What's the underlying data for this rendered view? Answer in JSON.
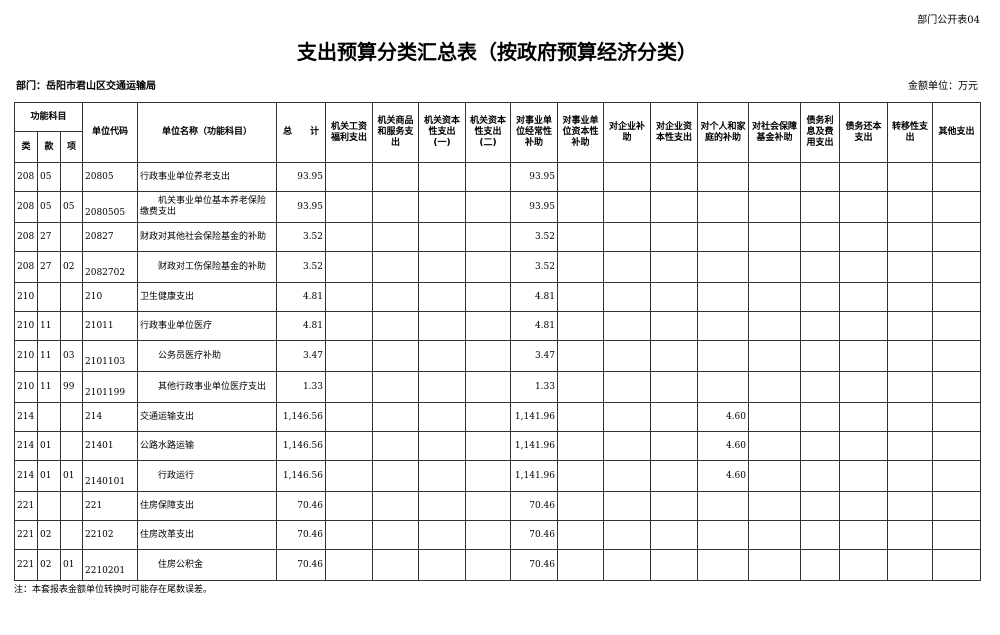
{
  "form_tag": "部门公开表04",
  "title": "支出预算分类汇总表（按政府预算经济分类）",
  "department": "部门：岳阳市君山区交通运输局",
  "unit": "金额单位：万元",
  "headers": {
    "func": "功能科目",
    "lei": "类",
    "kuan": "款",
    "xiang": "项",
    "code": "单位代码",
    "name": "单位名称（功能科目）",
    "total": "总　　计",
    "cols": [
      "机关工资福利支出",
      "机关商品和服务支出",
      "机关资本性支出(一)",
      "机关资本性支出(二)",
      "对事业单位经常性补助",
      "对事业单位资本性补助",
      "对企业补助",
      "对企业资本性支出",
      "对个人和家庭的补助",
      "对社会保障基金补助",
      "债务利息及费用支出",
      "债务还本支出",
      "转移性支出",
      "其他支出"
    ]
  },
  "rows": [
    {
      "lei": "208",
      "kuan": "05",
      "xiang": "",
      "code": "20805",
      "name": "行政事业单位养老支出",
      "total": "93.95",
      "v": [
        "",
        "",
        "",
        "",
        "93.95",
        "",
        "",
        "",
        "",
        "",
        "",
        "",
        "",
        ""
      ]
    },
    {
      "lei": "208",
      "kuan": "05",
      "xiang": "05",
      "code": "2080505",
      "name": "　　机关事业单位基本养老保险缴费支出",
      "total": "93.95",
      "v": [
        "",
        "",
        "",
        "",
        "93.95",
        "",
        "",
        "",
        "",
        "",
        "",
        "",
        "",
        ""
      ]
    },
    {
      "lei": "208",
      "kuan": "27",
      "xiang": "",
      "code": "20827",
      "name": "财政对其他社会保险基金的补助",
      "total": "3.52",
      "v": [
        "",
        "",
        "",
        "",
        "3.52",
        "",
        "",
        "",
        "",
        "",
        "",
        "",
        "",
        ""
      ]
    },
    {
      "lei": "208",
      "kuan": "27",
      "xiang": "02",
      "code": "2082702",
      "name": "　　财政对工伤保险基金的补助",
      "total": "3.52",
      "v": [
        "",
        "",
        "",
        "",
        "3.52",
        "",
        "",
        "",
        "",
        "",
        "",
        "",
        "",
        ""
      ]
    },
    {
      "lei": "210",
      "kuan": "",
      "xiang": "",
      "code": "210",
      "name": "卫生健康支出",
      "total": "4.81",
      "v": [
        "",
        "",
        "",
        "",
        "4.81",
        "",
        "",
        "",
        "",
        "",
        "",
        "",
        "",
        ""
      ]
    },
    {
      "lei": "210",
      "kuan": "11",
      "xiang": "",
      "code": "21011",
      "name": "行政事业单位医疗",
      "total": "4.81",
      "v": [
        "",
        "",
        "",
        "",
        "4.81",
        "",
        "",
        "",
        "",
        "",
        "",
        "",
        "",
        ""
      ]
    },
    {
      "lei": "210",
      "kuan": "11",
      "xiang": "03",
      "code": "2101103",
      "name": "　　公务员医疗补助",
      "total": "3.47",
      "v": [
        "",
        "",
        "",
        "",
        "3.47",
        "",
        "",
        "",
        "",
        "",
        "",
        "",
        "",
        ""
      ]
    },
    {
      "lei": "210",
      "kuan": "11",
      "xiang": "99",
      "code": "2101199",
      "name": "　　其他行政事业单位医疗支出",
      "total": "1.33",
      "v": [
        "",
        "",
        "",
        "",
        "1.33",
        "",
        "",
        "",
        "",
        "",
        "",
        "",
        "",
        ""
      ]
    },
    {
      "lei": "214",
      "kuan": "",
      "xiang": "",
      "code": "214",
      "name": "交通运输支出",
      "total": "1,146.56",
      "v": [
        "",
        "",
        "",
        "",
        "1,141.96",
        "",
        "",
        "",
        "4.60",
        "",
        "",
        "",
        "",
        ""
      ]
    },
    {
      "lei": "214",
      "kuan": "01",
      "xiang": "",
      "code": "21401",
      "name": "公路水路运输",
      "total": "1,146.56",
      "v": [
        "",
        "",
        "",
        "",
        "1,141.96",
        "",
        "",
        "",
        "4.60",
        "",
        "",
        "",
        "",
        ""
      ]
    },
    {
      "lei": "214",
      "kuan": "01",
      "xiang": "01",
      "code": "2140101",
      "name": "　　行政运行",
      "total": "1,146.56",
      "v": [
        "",
        "",
        "",
        "",
        "1,141.96",
        "",
        "",
        "",
        "4.60",
        "",
        "",
        "",
        "",
        ""
      ]
    },
    {
      "lei": "221",
      "kuan": "",
      "xiang": "",
      "code": "221",
      "name": "住房保障支出",
      "total": "70.46",
      "v": [
        "",
        "",
        "",
        "",
        "70.46",
        "",
        "",
        "",
        "",
        "",
        "",
        "",
        "",
        ""
      ]
    },
    {
      "lei": "221",
      "kuan": "02",
      "xiang": "",
      "code": "22102",
      "name": "住房改革支出",
      "total": "70.46",
      "v": [
        "",
        "",
        "",
        "",
        "70.46",
        "",
        "",
        "",
        "",
        "",
        "",
        "",
        "",
        ""
      ]
    },
    {
      "lei": "221",
      "kuan": "02",
      "xiang": "01",
      "code": "2210201",
      "name": "　　住房公积金",
      "total": "70.46",
      "v": [
        "",
        "",
        "",
        "",
        "70.46",
        "",
        "",
        "",
        "",
        "",
        "",
        "",
        "",
        ""
      ]
    }
  ],
  "note": "注：本套报表金额单位转换时可能存在尾数误差。"
}
